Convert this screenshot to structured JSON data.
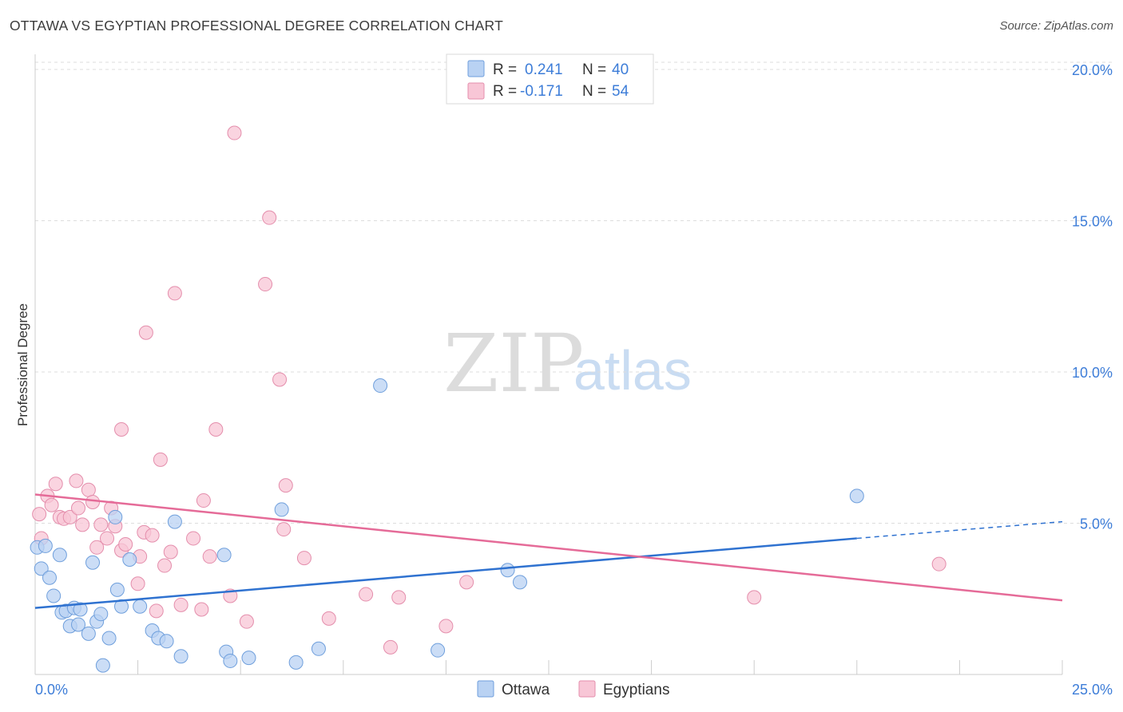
{
  "title": "OTTAWA VS EGYPTIAN PROFESSIONAL DEGREE CORRELATION CHART",
  "source": "Source: ZipAtlas.com",
  "watermark": {
    "zip": "ZIP",
    "atlas": "atlas"
  },
  "colors": {
    "ottawa_fill": "#b9d2f3",
    "ottawa_stroke": "#6f9fdc",
    "ottawa_line": "#2f72d0",
    "egypt_fill": "#f8c6d6",
    "egypt_stroke": "#e48eac",
    "egypt_line": "#e56b98",
    "tick_text": "#3d7dd8",
    "grid": "#dddddd"
  },
  "legend": {
    "ottawa": {
      "r_label": "R =",
      "r_value": "0.241",
      "n_label": "N =",
      "n_value": "40"
    },
    "egypt": {
      "r_label": "R =",
      "r_value": "-0.171",
      "n_label": "N =",
      "n_value": "54"
    }
  },
  "bottom_legend": {
    "ottawa": "Ottawa",
    "egypt": "Egyptians"
  },
  "chart_data": {
    "type": "scatter",
    "title": "OTTAWA VS EGYPTIAN PROFESSIONAL DEGREE CORRELATION CHART",
    "xlabel": "",
    "ylabel": "Professional Degree",
    "xlim": [
      0,
      25
    ],
    "ylim": [
      0,
      20.5
    ],
    "x_tick_labels": {
      "left": "0.0%",
      "right": "25.0%"
    },
    "y_ticks": [
      {
        "value": 5,
        "label": "5.0%"
      },
      {
        "value": 10,
        "label": "10.0%"
      },
      {
        "value": 15,
        "label": "15.0%"
      },
      {
        "value": 20,
        "label": "20.0%"
      }
    ],
    "grid": true,
    "series": [
      {
        "name": "Ottawa",
        "r": 0.241,
        "n": 40,
        "trend": {
          "x0": 0,
          "y0": 2.2,
          "x1": 20,
          "y1": 4.5,
          "dash_x1": 25,
          "dash_y1": 5.05
        },
        "points": [
          [
            0.05,
            4.2
          ],
          [
            0.25,
            4.25
          ],
          [
            0.15,
            3.5
          ],
          [
            0.35,
            3.2
          ],
          [
            0.45,
            2.6
          ],
          [
            0.6,
            3.95
          ],
          [
            0.65,
            2.05
          ],
          [
            0.75,
            2.1
          ],
          [
            0.85,
            1.6
          ],
          [
            0.95,
            2.2
          ],
          [
            1.05,
            1.65
          ],
          [
            1.1,
            2.15
          ],
          [
            1.3,
            1.35
          ],
          [
            1.4,
            3.7
          ],
          [
            1.5,
            1.75
          ],
          [
            1.6,
            2.0
          ],
          [
            1.65,
            0.3
          ],
          [
            1.8,
            1.2
          ],
          [
            1.95,
            5.2
          ],
          [
            2.0,
            2.8
          ],
          [
            2.1,
            2.25
          ],
          [
            2.3,
            3.8
          ],
          [
            2.55,
            2.25
          ],
          [
            2.85,
            1.45
          ],
          [
            3.0,
            1.2
          ],
          [
            3.2,
            1.1
          ],
          [
            3.4,
            5.05
          ],
          [
            3.55,
            0.6
          ],
          [
            4.6,
            3.95
          ],
          [
            4.65,
            0.75
          ],
          [
            4.75,
            0.45
          ],
          [
            5.2,
            0.55
          ],
          [
            6.0,
            5.45
          ],
          [
            6.35,
            0.4
          ],
          [
            6.9,
            0.85
          ],
          [
            8.4,
            9.55
          ],
          [
            9.8,
            0.8
          ],
          [
            11.5,
            3.45
          ],
          [
            11.8,
            3.05
          ],
          [
            20.0,
            5.9
          ]
        ]
      },
      {
        "name": "Egyptians",
        "r": -0.171,
        "n": 54,
        "trend": {
          "x0": 0,
          "y0": 5.95,
          "x1": 25,
          "y1": 2.45
        },
        "points": [
          [
            0.1,
            5.3
          ],
          [
            0.15,
            4.5
          ],
          [
            0.3,
            5.9
          ],
          [
            0.4,
            5.6
          ],
          [
            0.5,
            6.3
          ],
          [
            0.6,
            5.2
          ],
          [
            0.7,
            5.15
          ],
          [
            0.85,
            5.2
          ],
          [
            1.0,
            6.4
          ],
          [
            1.05,
            5.5
          ],
          [
            1.15,
            4.95
          ],
          [
            1.3,
            6.1
          ],
          [
            1.4,
            5.7
          ],
          [
            1.5,
            4.2
          ],
          [
            1.6,
            4.95
          ],
          [
            1.75,
            4.5
          ],
          [
            1.85,
            5.5
          ],
          [
            1.95,
            4.9
          ],
          [
            2.1,
            4.1
          ],
          [
            2.2,
            4.3
          ],
          [
            2.5,
            3.0
          ],
          [
            2.55,
            3.9
          ],
          [
            2.65,
            4.7
          ],
          [
            2.7,
            11.3
          ],
          [
            2.85,
            4.6
          ],
          [
            2.95,
            2.1
          ],
          [
            3.05,
            7.1
          ],
          [
            3.15,
            3.6
          ],
          [
            3.3,
            4.05
          ],
          [
            3.4,
            12.6
          ],
          [
            3.55,
            2.3
          ],
          [
            3.85,
            4.5
          ],
          [
            4.05,
            2.15
          ],
          [
            4.1,
            5.75
          ],
          [
            4.25,
            3.9
          ],
          [
            4.4,
            8.1
          ],
          [
            4.75,
            2.6
          ],
          [
            4.85,
            17.9
          ],
          [
            5.15,
            1.75
          ],
          [
            5.6,
            12.9
          ],
          [
            5.7,
            15.1
          ],
          [
            5.95,
            9.75
          ],
          [
            6.05,
            4.8
          ],
          [
            6.1,
            6.25
          ],
          [
            6.55,
            3.85
          ],
          [
            7.15,
            1.85
          ],
          [
            8.05,
            2.65
          ],
          [
            8.65,
            0.9
          ],
          [
            8.85,
            2.55
          ],
          [
            10.0,
            1.6
          ],
          [
            10.5,
            3.05
          ],
          [
            17.5,
            2.55
          ],
          [
            22.0,
            3.65
          ],
          [
            2.1,
            8.1
          ]
        ]
      }
    ]
  }
}
